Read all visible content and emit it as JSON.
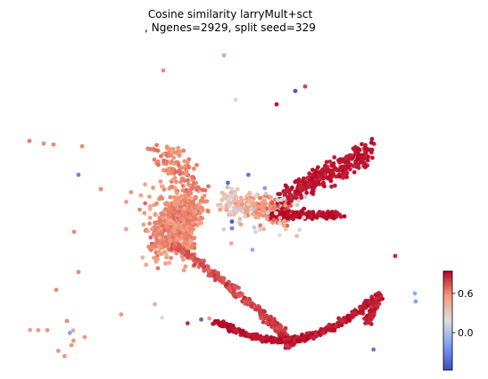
{
  "chart_data": {
    "type": "scatter",
    "title_line1": "Cosine similarity larryMult+sct",
    "title_line2": ", Ngenes=2929, split seed=329",
    "xlabel": "",
    "ylabel": "",
    "axes_visible": false,
    "colorbar": {
      "colormap": "coolwarm",
      "min": -0.25,
      "max": 0.87,
      "ticks": [
        0.0,
        0.6
      ],
      "tick_labels": [
        "0.0",
        "0.6"
      ],
      "location": "lower-right"
    },
    "colors": {
      "low": "#3b4cc0",
      "mid": "#dddddd",
      "high": "#b40426"
    },
    "outliers": [
      {
        "x": 0.8,
        "y": 9.0,
        "v": 0.55
      },
      {
        "x": 2.8,
        "y": 8.9,
        "v": 0.6
      },
      {
        "x": 5.0,
        "y": 8.9,
        "v": 0.6
      },
      {
        "x": 11.3,
        "y": 8.8,
        "v": 0.55
      },
      {
        "x": 10.5,
        "y": 7.9,
        "v": 0.05
      },
      {
        "x": 14.1,
        "y": 6.3,
        "v": 0.6
      },
      {
        "x": 11.4,
        "y": 5.0,
        "v": 0.6
      },
      {
        "x": 10.9,
        "y": 3.3,
        "v": 0.6
      },
      {
        "x": 7.7,
        "y": 1.2,
        "v": 0.6
      },
      {
        "x": 9.2,
        "y": -0.8,
        "v": 0.6
      },
      {
        "x": 23.0,
        "y": 14.8,
        "v": 0.6
      },
      {
        "x": 31.2,
        "y": 18.6,
        "v": 0.5
      },
      {
        "x": 33.0,
        "y": 13.6,
        "v": 0.3
      },
      {
        "x": 42.5,
        "y": 12.9,
        "v": -0.15
      },
      {
        "x": 39.2,
        "y": 11.5,
        "v": 0.8
      },
      {
        "x": 44.5,
        "y": 13.3,
        "v": 0.6
      },
      {
        "x": 84.5,
        "y": 1.7,
        "v": -0.1
      }
    ]
  }
}
